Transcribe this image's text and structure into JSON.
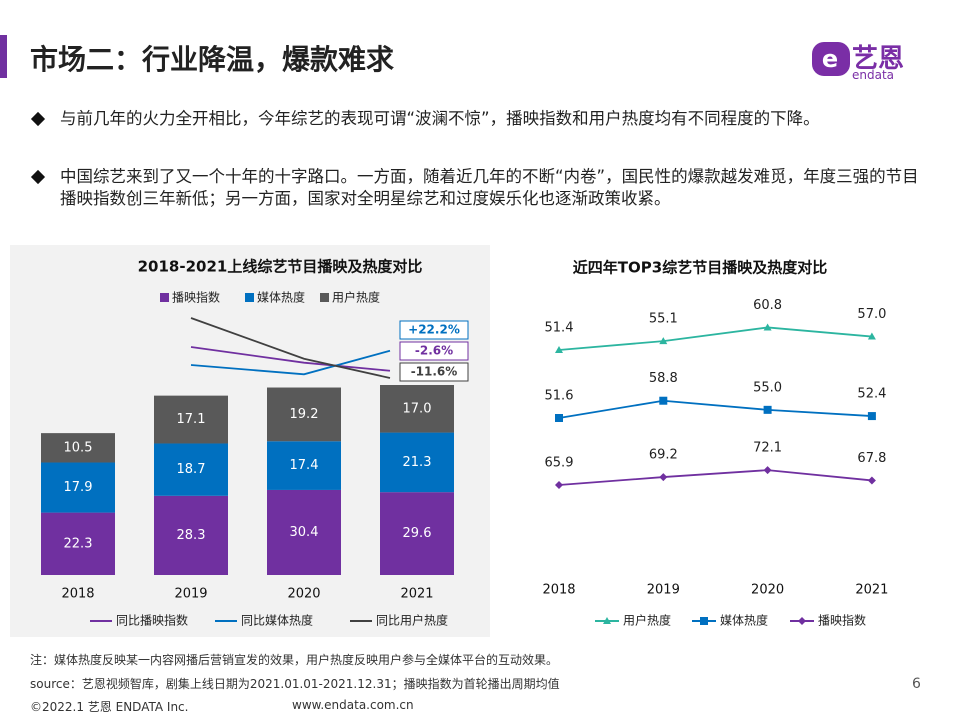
{
  "header": {
    "title": "市场二：行业降温，爆款难求",
    "logo_cn": "艺恩",
    "logo_en": "endata"
  },
  "bullets": [
    "与前几年的火力全开相比，今年综艺的表现可谓“波澜不惊”，播映指数和用户热度均有不同程度的下降。",
    "中国综艺来到了又一个十年的十字路口。一方面，随着近几年的不断“内卷”，国民性的爆款越发难觅，年度三强的节目播映指数创三年新低；另一方面，国家对全明星综艺和过度娱乐化也逐渐政策收紧。"
  ],
  "chart_data": [
    {
      "type": "bar",
      "stacked": true,
      "title": "2018-2021上线综艺节目播映及热度对比",
      "categories": [
        "2018",
        "2019",
        "2020",
        "2021"
      ],
      "series": [
        {
          "name": "播映指数",
          "color": "#7030a0",
          "values": [
            22.3,
            28.3,
            30.4,
            29.6
          ]
        },
        {
          "name": "媒体热度",
          "color": "#0070c0",
          "values": [
            17.9,
            18.7,
            17.4,
            21.3
          ]
        },
        {
          "name": "用户热度",
          "color": "#595959",
          "values": [
            10.5,
            17.1,
            19.2,
            17.0
          ],
          "value_labels": [
            "10.5",
            "17.1",
            "19.2",
            "17.0"
          ]
        },
        {
          "type": "line",
          "name": "同比播映指数",
          "color": "#7030a0",
          "values": [
            null,
            26.9,
            7.4,
            -2.6
          ],
          "value_labels": [
            null,
            null,
            null,
            "-2.6%"
          ]
        },
        {
          "type": "line",
          "name": "同比媒体热度",
          "color": "#0070c0",
          "values": [
            null,
            4.5,
            -7.0,
            22.2
          ],
          "value_labels": [
            null,
            null,
            null,
            "+22.2%"
          ]
        },
        {
          "type": "line",
          "name": "同比用户热度",
          "color": "#404040",
          "values": [
            null,
            62.9,
            12.3,
            -11.6
          ],
          "value_labels": [
            null,
            null,
            null,
            "-11.6%"
          ]
        }
      ]
    },
    {
      "type": "line",
      "title": "近四年TOP3综艺节目播映及热度对比",
      "categories": [
        "2018",
        "2019",
        "2020",
        "2021"
      ],
      "series": [
        {
          "name": "用户热度",
          "color": "#2cb5a0",
          "marker": "triangle",
          "values": [
            51.4,
            55.1,
            60.8,
            57.0
          ],
          "value_labels": [
            "51.4",
            "55.1",
            "60.8",
            "57.0"
          ]
        },
        {
          "name": "媒体热度",
          "color": "#0070c0",
          "marker": "square",
          "values": [
            51.6,
            58.8,
            55.0,
            52.4
          ],
          "value_labels": [
            "51.6",
            "58.8",
            "55.0",
            "52.4"
          ]
        },
        {
          "name": "播映指数",
          "color": "#7030a0",
          "marker": "diamond",
          "values": [
            65.9,
            69.2,
            72.1,
            67.8
          ]
        }
      ]
    }
  ],
  "footer": {
    "note": "注：媒体热度反映某一内容网播后营销宣发的效果，用户热度反映用户参与全媒体平台的互动效果。",
    "source": "source：艺恩视频智库，剧集上线日期为2021.01.01-2021.12.31；播映指数为首轮播出周期均值",
    "copyright": "©2022.1 艺恩 ENDATA Inc.",
    "website": "www.endata.com.cn",
    "page_number": "6"
  }
}
